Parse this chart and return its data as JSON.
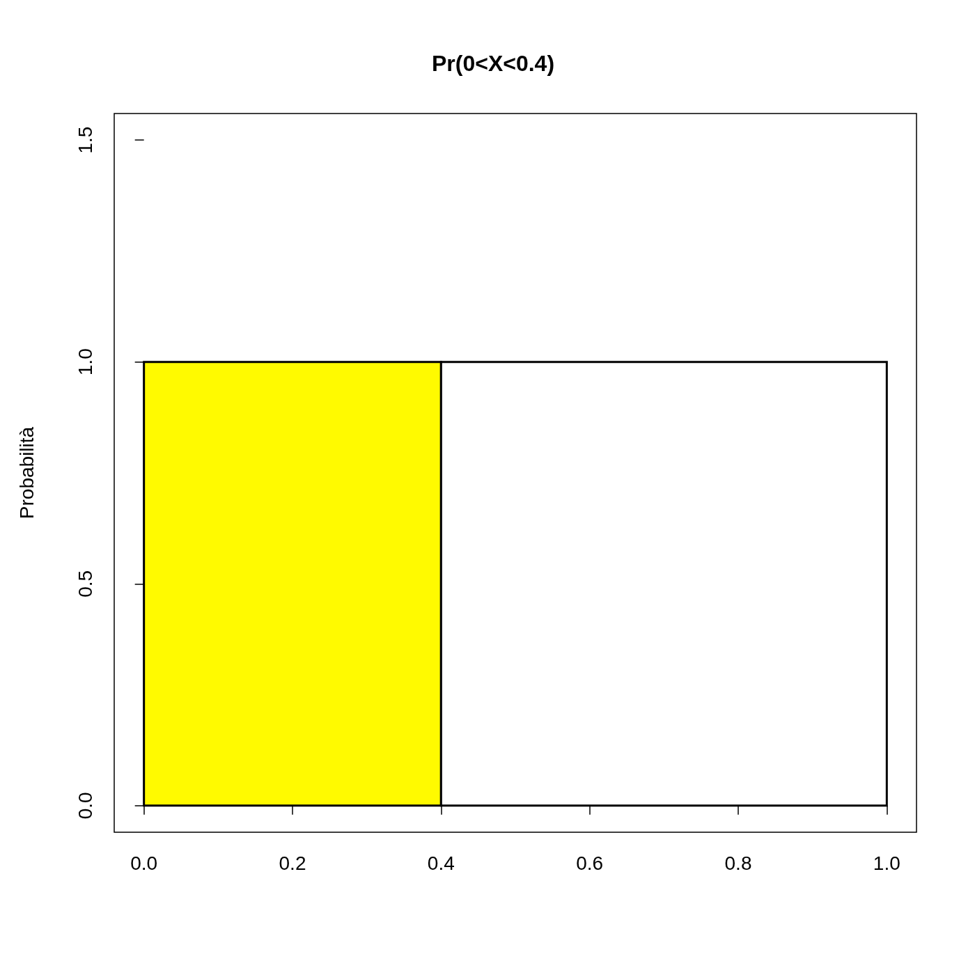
{
  "chart_data": {
    "type": "histogram",
    "title": "Pr(0<X<0.4)",
    "ylabel": "Probabilità",
    "bins": [
      0,
      0.4,
      1
    ],
    "values": [
      1,
      1
    ],
    "colors": [
      "#fffa00",
      "#ffffff"
    ],
    "xlim": [
      -0.04,
      1.04
    ],
    "xticks": [
      {
        "value": 0,
        "label": "0.0"
      },
      0.2,
      0.4,
      0.6,
      0.8,
      {
        "value": 1,
        "label": "1.0"
      }
    ],
    "ylim": [
      -0.06,
      1.56
    ],
    "yticks": [
      {
        "value": 0,
        "label": "0.0"
      },
      0.5,
      {
        "value": 1,
        "label": "1.0"
      },
      1.5
    ]
  }
}
